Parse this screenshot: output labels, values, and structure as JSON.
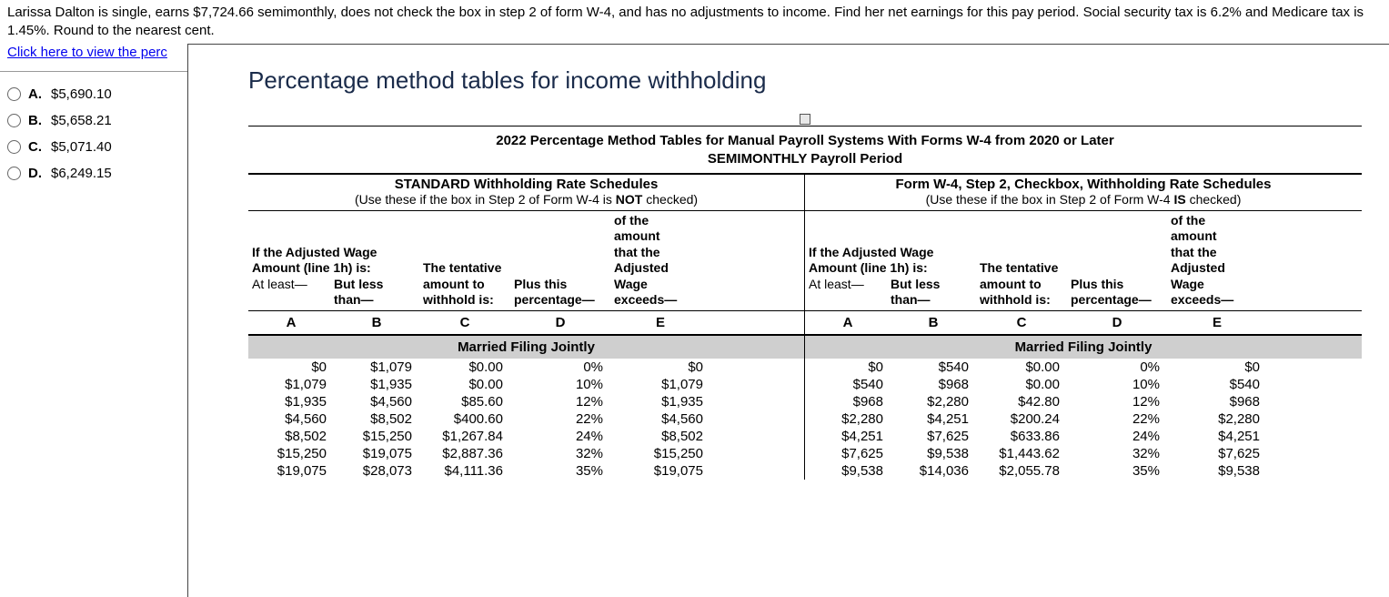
{
  "question": {
    "text": "Larissa Dalton is single, earns $7,724.66 semimonthly, does not check the box in step 2 of form W-4, and has no adjustments to income. Find her net earnings for this pay period. Social security tax is 6.2% and Medicare tax is 1.45%. Round to the nearest cent."
  },
  "link": {
    "text": "Click here to view the perc"
  },
  "answers": [
    {
      "label": "A.",
      "value": "$5,690.10"
    },
    {
      "label": "B.",
      "value": "$5,658.21"
    },
    {
      "label": "C.",
      "value": "$5,071.40"
    },
    {
      "label": "D.",
      "value": "$6,249.15"
    }
  ],
  "modal": {
    "title": "Percentage method tables for income withholding",
    "table_title_line1": "2022 Percentage Method Tables for Manual Payroll Systems With Forms W-4 from 2020 or Later",
    "table_title_line2": "SEMIMONTHLY Payroll Period",
    "left": {
      "schedule_title": "STANDARD Withholding Rate Schedules",
      "schedule_sub_pre": "(Use these if the box in Step 2 of Form W-4 is ",
      "schedule_sub_bold": "NOT",
      "schedule_sub_post": " checked)"
    },
    "right": {
      "schedule_title": "Form W-4, Step 2, Checkbox, Withholding Rate Schedules",
      "schedule_sub_pre": "(Use these if the box in Step 2 of Form W-4 ",
      "schedule_sub_bold": "IS",
      "schedule_sub_post": " checked)"
    },
    "headers": {
      "adj_wage_line1": "If the Adjusted Wage",
      "adj_wage_line2": "Amount (line 1h) is:",
      "at_least": "At least—",
      "but_less": "But less",
      "than": "than—",
      "tentative1": "The tentative",
      "tentative2": "amount to",
      "tentative3": "withhold is:",
      "plus1": "Plus this",
      "plus2": "percentage—",
      "of1": "of the",
      "of2": "amount",
      "of3": "that the",
      "of4": "Adjusted",
      "of5": "Wage",
      "of6": "exceeds—",
      "A": "A",
      "B": "B",
      "C": "C",
      "D": "D",
      "E": "E"
    },
    "status": "Married Filing Jointly",
    "left_rows": [
      [
        "$0",
        "$1,079",
        "$0.00",
        "0%",
        "$0"
      ],
      [
        "$1,079",
        "$1,935",
        "$0.00",
        "10%",
        "$1,079"
      ],
      [
        "$1,935",
        "$4,560",
        "$85.60",
        "12%",
        "$1,935"
      ],
      [
        "$4,560",
        "$8,502",
        "$400.60",
        "22%",
        "$4,560"
      ],
      [
        "$8,502",
        "$15,250",
        "$1,267.84",
        "24%",
        "$8,502"
      ],
      [
        "$15,250",
        "$19,075",
        "$2,887.36",
        "32%",
        "$15,250"
      ],
      [
        "$19,075",
        "$28,073",
        "$4,111.36",
        "35%",
        "$19,075"
      ]
    ],
    "right_rows": [
      [
        "$0",
        "$540",
        "$0.00",
        "0%",
        "$0"
      ],
      [
        "$540",
        "$968",
        "$0.00",
        "10%",
        "$540"
      ],
      [
        "$968",
        "$2,280",
        "$42.80",
        "12%",
        "$968"
      ],
      [
        "$2,280",
        "$4,251",
        "$200.24",
        "22%",
        "$2,280"
      ],
      [
        "$4,251",
        "$7,625",
        "$633.86",
        "24%",
        "$4,251"
      ],
      [
        "$7,625",
        "$9,538",
        "$1,443.62",
        "32%",
        "$7,625"
      ],
      [
        "$9,538",
        "$14,036",
        "$2,055.78",
        "35%",
        "$9,538"
      ]
    ]
  }
}
